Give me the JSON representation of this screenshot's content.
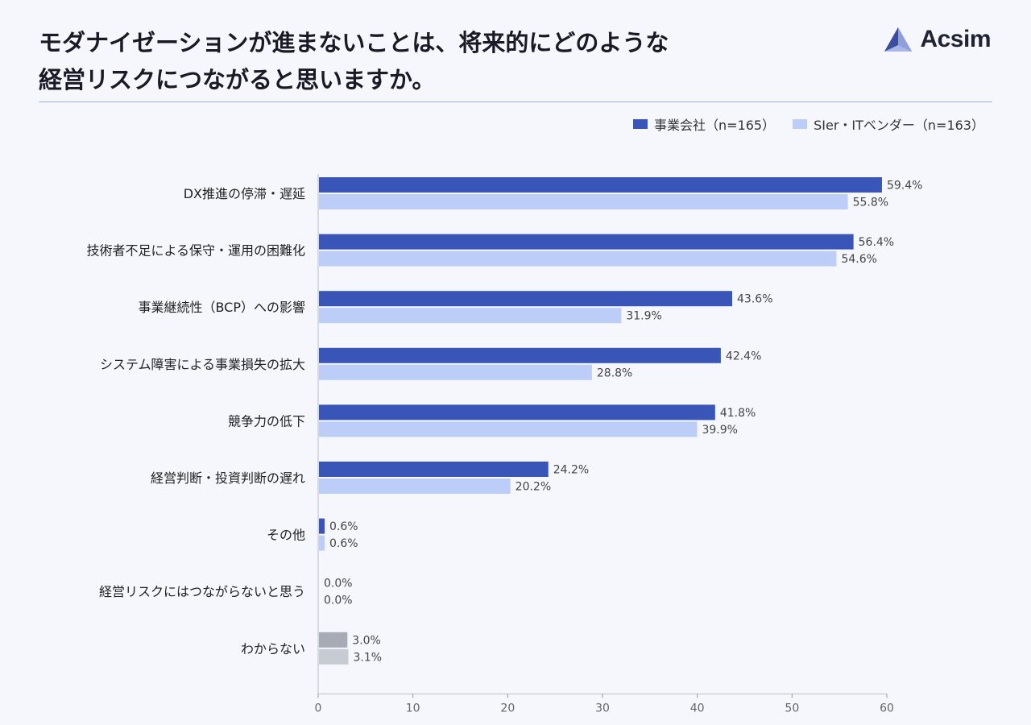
{
  "title": {
    "line1": "モダナイゼーションが進まないことは、将来的にどのような",
    "line2": "経営リスクにつながると思いますか。"
  },
  "brand": {
    "name": "Acsim",
    "icon": "acsim-logo-icon"
  },
  "colors": {
    "series1": "#3a55b8",
    "series2": "#bccdf8",
    "neutral1": "#a8abb6",
    "neutral2": "#c8cbd3",
    "axis": "#666666",
    "label": "#222222",
    "value": "#444444"
  },
  "chart_data": {
    "type": "bar",
    "orientation": "horizontal",
    "categories": [
      "DX推進の停滞・遅延",
      "技術者不足による保守・運用の困難化",
      "事業継続性（BCP）への影響",
      "システム障害による事業損失の拡大",
      "競争力の低下",
      "経営判断・投資判断の遅れ",
      "その他",
      "経営リスクにはつながらないと思う",
      "わからない"
    ],
    "series": [
      {
        "name": "事業会社（n=165）",
        "values": [
          59.4,
          56.4,
          43.6,
          42.4,
          41.8,
          24.2,
          0.6,
          0.0,
          3.0
        ]
      },
      {
        "name": "SIer・ITベンダー（n=163）",
        "values": [
          55.8,
          54.6,
          31.9,
          28.8,
          39.9,
          20.2,
          0.6,
          0.0,
          3.1
        ]
      }
    ],
    "value_suffix": "%",
    "xlim": [
      0,
      60
    ],
    "xticks": [
      0,
      10,
      20,
      30,
      40,
      50,
      60
    ],
    "neutral_categories": [
      "わからない"
    ],
    "legend_position": "top-right",
    "grid": false
  }
}
